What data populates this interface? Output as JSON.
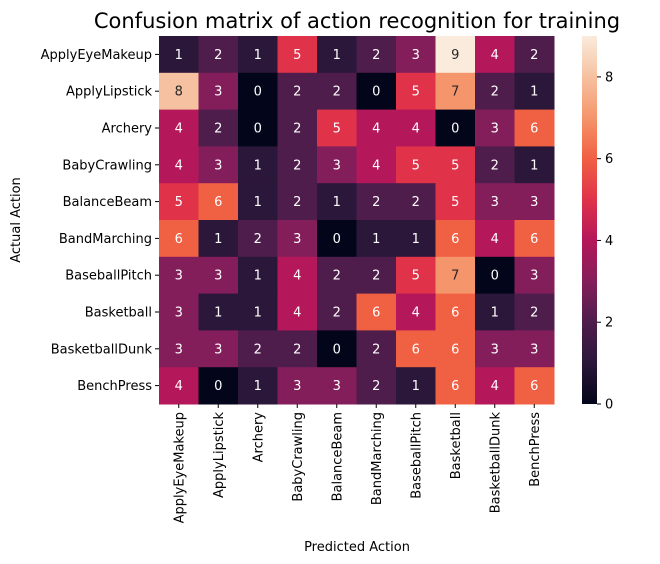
{
  "chart_data": {
    "type": "heatmap",
    "title": "Confusion matrix of action recognition for training",
    "xlabel": "Predicted Action",
    "ylabel": "Actual Action",
    "x_categories": [
      "ApplyEyeMakeup",
      "ApplyLipstick",
      "Archery",
      "BabyCrawling",
      "BalanceBeam",
      "BandMarching",
      "BaseballPitch",
      "Basketball",
      "BasketballDunk",
      "BenchPress"
    ],
    "y_categories": [
      "ApplyEyeMakeup",
      "ApplyLipstick",
      "Archery",
      "BabyCrawling",
      "BalanceBeam",
      "BandMarching",
      "BaseballPitch",
      "Basketball",
      "BasketballDunk",
      "BenchPress"
    ],
    "values": [
      [
        1,
        2,
        1,
        5,
        1,
        2,
        3,
        9,
        4,
        2
      ],
      [
        8,
        3,
        0,
        2,
        2,
        0,
        5,
        7,
        2,
        1
      ],
      [
        4,
        2,
        0,
        2,
        5,
        4,
        4,
        0,
        3,
        6
      ],
      [
        4,
        3,
        1,
        2,
        3,
        4,
        5,
        5,
        2,
        1
      ],
      [
        5,
        6,
        1,
        2,
        1,
        2,
        2,
        5,
        3,
        3
      ],
      [
        6,
        1,
        2,
        3,
        0,
        1,
        1,
        6,
        4,
        6
      ],
      [
        3,
        3,
        1,
        4,
        2,
        2,
        5,
        7,
        0,
        3
      ],
      [
        3,
        1,
        1,
        4,
        2,
        6,
        4,
        6,
        1,
        2
      ],
      [
        3,
        3,
        2,
        2,
        0,
        2,
        6,
        6,
        3,
        3
      ],
      [
        4,
        0,
        1,
        3,
        3,
        2,
        1,
        6,
        4,
        6
      ]
    ],
    "colormap": "rocket",
    "vmin": 0,
    "vmax": 9,
    "colorbar_ticks": [
      0,
      2,
      4,
      6,
      8
    ],
    "palette": [
      "#03051a",
      "#2b1739",
      "#4f1d4b",
      "#841e5a",
      "#b4185a",
      "#e0334a",
      "#f06043",
      "#f5956b",
      "#f6c1a0",
      "#faebdd"
    ]
  }
}
